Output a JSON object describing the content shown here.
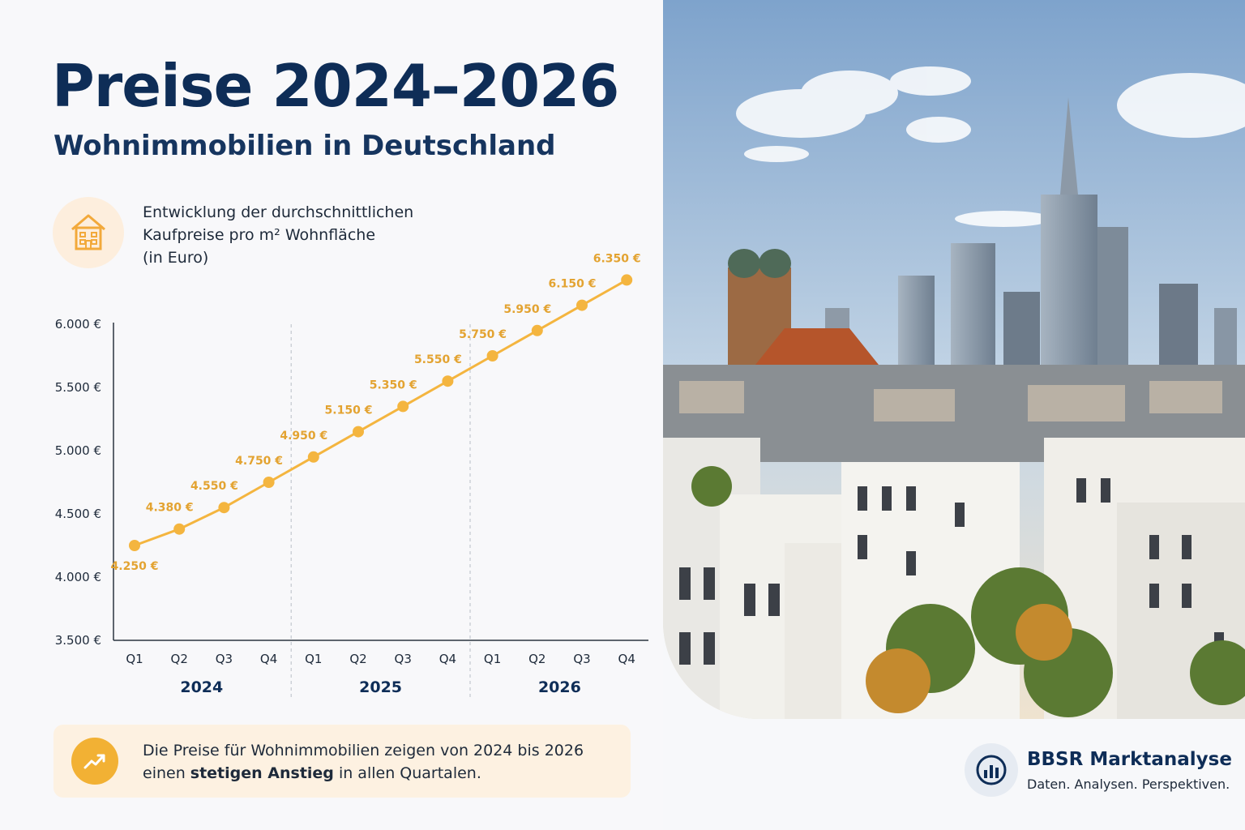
{
  "header": {
    "title": "Preise 2024–2026",
    "subtitle": "Wohnimmobilien in Deutschland"
  },
  "description": {
    "line1": "Entwicklung der durchschnittlichen",
    "line2": "Kaufpreise pro m² Wohnfläche",
    "line3": "(in Euro)",
    "icon": "house-icon"
  },
  "chart_data": {
    "type": "line",
    "categories": [
      "Q1",
      "Q2",
      "Q3",
      "Q4",
      "Q1",
      "Q2",
      "Q3",
      "Q4",
      "Q1",
      "Q2",
      "Q3",
      "Q4"
    ],
    "groups": [
      {
        "label": "2024",
        "categories": [
          "Q1",
          "Q2",
          "Q3",
          "Q4"
        ]
      },
      {
        "label": "2025",
        "categories": [
          "Q1",
          "Q2",
          "Q3",
          "Q4"
        ]
      },
      {
        "label": "2026",
        "categories": [
          "Q1",
          "Q2",
          "Q3",
          "Q4"
        ]
      }
    ],
    "values": [
      4250,
      4380,
      4550,
      4750,
      4950,
      5150,
      5350,
      5550,
      5750,
      5950,
      6150,
      6350
    ],
    "data_labels": [
      "4.250 €",
      "4.380 €",
      "4.550 €",
      "4.750 €",
      "4.950 €",
      "5.150 €",
      "5.350 €",
      "5.550 €",
      "5.750 €",
      "5.950 €",
      "6.150 €",
      "6.350 €"
    ],
    "ylim": [
      3500,
      6000
    ],
    "yticks": [
      3500,
      4000,
      4500,
      5000,
      5500,
      6000
    ],
    "ytick_labels": [
      "3.500 €",
      "4.000 €",
      "4.500 €",
      "5.000 €",
      "5.500 €",
      "6.000 €"
    ],
    "grid": false,
    "line_color": "#f4b53f"
  },
  "note": {
    "line1": "Die Preise für Wohnimmobilien zeigen von 2024 bis 2026",
    "line2_before": "einen ",
    "line2_bold": "stetigen Anstieg",
    "line2_after": " in allen Quartalen.",
    "icon": "trend-up-icon"
  },
  "brand": {
    "name": "BBSR Marktanalyse",
    "tagline": "Daten. Analysen. Perspektiven.",
    "icon": "bar-chart-icon"
  },
  "colors": {
    "title": "#0e2d57",
    "accent": "#f4b53f",
    "label": "#e3a331"
  }
}
